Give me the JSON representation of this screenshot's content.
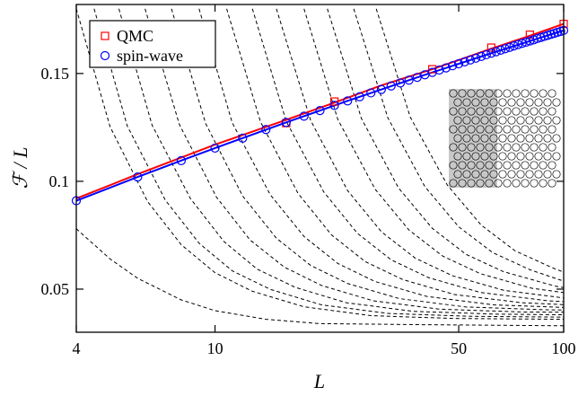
{
  "chart_data": {
    "type": "line",
    "x_label": "L",
    "y_label": "ℱ / L",
    "xscale": "log",
    "xlim": [
      4,
      100
    ],
    "xticks": [
      4,
      10,
      50,
      100
    ],
    "ylim": [
      0.03,
      0.182
    ],
    "yticks": [
      0.05,
      0.1,
      0.15
    ],
    "legend": "upper left",
    "series": [
      {
        "name": "QMC",
        "color": "#ff0000",
        "marker": "square",
        "x": [
          16,
          22,
          42,
          62,
          80,
          100
        ],
        "values": [
          0.127,
          0.137,
          0.152,
          0.162,
          0.168,
          0.173
        ]
      },
      {
        "name": "spin-wave",
        "color": "#0000ff",
        "marker": "circle",
        "x": [
          4,
          6,
          8,
          10,
          12,
          14,
          16,
          18,
          20,
          22,
          24,
          26,
          28,
          30,
          32,
          34,
          36,
          38,
          40,
          42,
          44,
          46,
          48,
          50,
          52,
          54,
          56,
          58,
          60,
          62,
          64,
          66,
          68,
          70,
          72,
          74,
          76,
          78,
          80,
          82,
          84,
          86,
          88,
          90,
          92,
          94,
          96,
          98,
          100
        ],
        "values": [
          0.091,
          0.102,
          0.1096,
          0.1154,
          0.12,
          0.124,
          0.1273,
          0.1302,
          0.1328,
          0.1352,
          0.1373,
          0.1392,
          0.141,
          0.1426,
          0.1442,
          0.1456,
          0.1469,
          0.1482,
          0.1494,
          0.1505,
          0.1516,
          0.1526,
          0.1536,
          0.1545,
          0.1554,
          0.1563,
          0.1571,
          0.1579,
          0.1587,
          0.1594,
          0.1601,
          0.1608,
          0.1615,
          0.1621,
          0.1628,
          0.1634,
          0.164,
          0.1645,
          0.1651,
          0.1656,
          0.1662,
          0.1667,
          0.1672,
          0.1677,
          0.1682,
          0.1686,
          0.1691,
          0.1695,
          0.17
        ]
      }
    ],
    "fits": [
      {
        "color": "#ff0000",
        "x": [
          4,
          6,
          8,
          10,
          16,
          22,
          30,
          42,
          62,
          80,
          100
        ],
        "values": [
          0.092,
          0.1033,
          0.111,
          0.117,
          0.1285,
          0.1365,
          0.1445,
          0.152,
          0.1615,
          0.1675,
          0.173
        ]
      },
      {
        "color": "#0000ff",
        "x": [
          4,
          6,
          8,
          10,
          16,
          24,
          40,
          64,
          100
        ],
        "values": [
          0.091,
          0.102,
          0.1096,
          0.1154,
          0.1273,
          0.1373,
          0.1494,
          0.1601,
          0.17
        ]
      }
    ],
    "guides": [
      {
        "color": "#000000",
        "x": [
          4,
          5,
          6,
          8,
          10,
          14,
          20,
          40,
          100
        ],
        "values": [
          0.078,
          0.064,
          0.055,
          0.045,
          0.04,
          0.036,
          0.034,
          0.0335,
          0.033
        ]
      },
      {
        "color": "#000000",
        "x": [
          4,
          5,
          6.4,
          8,
          10,
          12.8,
          18,
          28,
          48,
          100
        ],
        "values": [
          0.18,
          0.1253,
          0.0907,
          0.0706,
          0.0576,
          0.049,
          0.0418,
          0.0377,
          0.0364,
          0.036
        ]
      },
      {
        "color": "#000000",
        "x": [
          4.5,
          5.6,
          7.2,
          9,
          11.2,
          14.4,
          20.2,
          31.5,
          54,
          100
        ],
        "values": [
          0.18,
          0.1257,
          0.0913,
          0.0713,
          0.0585,
          0.0499,
          0.0427,
          0.0387,
          0.0374,
          0.037
        ]
      },
      {
        "color": "#000000",
        "x": [
          5.3,
          6.6,
          8.5,
          10.6,
          13.2,
          17,
          23.8,
          37,
          64,
          100
        ],
        "values": [
          0.18,
          0.126,
          0.092,
          0.0721,
          0.0593,
          0.0508,
          0.0437,
          0.0397,
          0.0384,
          0.0381
        ]
      },
      {
        "color": "#000000",
        "x": [
          6.3,
          7.9,
          10.1,
          12.6,
          15.8,
          20.2,
          28.4,
          44,
          76,
          100
        ],
        "values": [
          0.18,
          0.1264,
          0.0926,
          0.0728,
          0.0602,
          0.0517,
          0.0446,
          0.0407,
          0.0394,
          0.0393
        ]
      },
      {
        "color": "#000000",
        "x": [
          7.5,
          9.4,
          12,
          15,
          18.8,
          24,
          33.8,
          52.5,
          90,
          100
        ],
        "values": [
          0.18,
          0.1268,
          0.0932,
          0.0736,
          0.061,
          0.0526,
          0.0456,
          0.0417,
          0.0404,
          0.0403
        ]
      },
      {
        "color": "#000000",
        "x": [
          9,
          11.2,
          14.4,
          18,
          22.5,
          28.8,
          40.5,
          63,
          100
        ],
        "values": [
          0.18,
          0.1272,
          0.0938,
          0.0744,
          0.0619,
          0.0535,
          0.0466,
          0.0427,
          0.0415
        ]
      },
      {
        "color": "#000000",
        "x": [
          10.8,
          13.5,
          17.3,
          21.6,
          27,
          34.6,
          48.6,
          75.6,
          100
        ],
        "values": [
          0.18,
          0.1276,
          0.0944,
          0.0751,
          0.0627,
          0.0544,
          0.0475,
          0.0437,
          0.0428
        ]
      },
      {
        "color": "#000000",
        "x": [
          12.8,
          16,
          20.5,
          25.6,
          32,
          41,
          57.6,
          89.6,
          100
        ],
        "values": [
          0.18,
          0.1279,
          0.0951,
          0.0759,
          0.0636,
          0.0553,
          0.0485,
          0.0446,
          0.0442
        ]
      },
      {
        "color": "#000000",
        "x": [
          15,
          18.8,
          24,
          30,
          37.5,
          48,
          67.5,
          100
        ],
        "values": [
          0.18,
          0.1283,
          0.0957,
          0.0766,
          0.0644,
          0.0562,
          0.0494,
          0.0459
        ]
      },
      {
        "color": "#000000",
        "x": [
          18,
          22.5,
          28.8,
          36,
          45,
          57.6,
          81,
          100
        ],
        "values": [
          0.18,
          0.1287,
          0.0963,
          0.0774,
          0.0653,
          0.0572,
          0.0504,
          0.0484
        ]
      },
      {
        "color": "#000000",
        "x": [
          21,
          26.3,
          33.6,
          42,
          52.5,
          67.2,
          94.5,
          100
        ],
        "values": [
          0.18,
          0.1291,
          0.0969,
          0.0782,
          0.0661,
          0.0581,
          0.0514,
          0.0507
        ]
      },
      {
        "color": "#000000",
        "x": [
          25,
          31.3,
          40,
          50,
          62.5,
          80,
          100
        ],
        "values": [
          0.18,
          0.1295,
          0.0975,
          0.0789,
          0.067,
          0.059,
          0.0537
        ]
      },
      {
        "color": "#000000",
        "x": [
          29,
          36.3,
          46.4,
          58,
          72.5,
          92.8,
          100
        ],
        "values": [
          0.18,
          0.1298,
          0.0982,
          0.0797,
          0.0678,
          0.0599,
          0.0579
        ]
      }
    ]
  }
}
